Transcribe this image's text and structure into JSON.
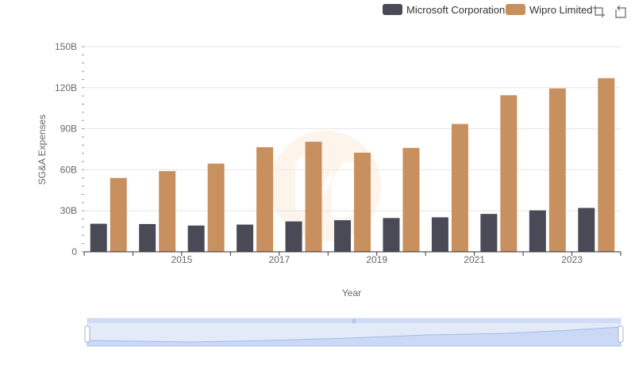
{
  "chart_data": {
    "type": "bar",
    "title": "",
    "xlabel": "Year",
    "ylabel": "SG&A Expenses",
    "categories": [
      "2014",
      "2015",
      "2016",
      "2017",
      "2018",
      "2019",
      "2020",
      "2021",
      "2022",
      "2023",
      "2024"
    ],
    "x_tick_labels": [
      "2015",
      "2017",
      "2019",
      "2021",
      "2023"
    ],
    "y_tick_labels": [
      "0",
      "30B",
      "60B",
      "90B",
      "120B",
      "150B"
    ],
    "ylim": [
      0,
      150
    ],
    "y_unit": "B",
    "grid": true,
    "legend_position": "top-right",
    "series": [
      {
        "name": "Microsoft Corporation",
        "color": "#4a4a57",
        "values": [
          20.5,
          20.3,
          19.2,
          19.9,
          22.2,
          23.1,
          24.7,
          25.2,
          27.7,
          30.3,
          32.1
        ]
      },
      {
        "name": "Wipro Limited",
        "color": "#c8905e",
        "values": [
          54.0,
          59.0,
          64.5,
          76.5,
          80.5,
          72.5,
          76.0,
          93.5,
          114.5,
          119.5,
          127.0
        ]
      }
    ]
  },
  "toolbox": {
    "zoom_icon": "data-zoom-icon",
    "restore_icon": "restore-icon"
  },
  "data_zoom": {
    "start_percent": 0,
    "end_percent": 100,
    "handle_label": "|||"
  }
}
